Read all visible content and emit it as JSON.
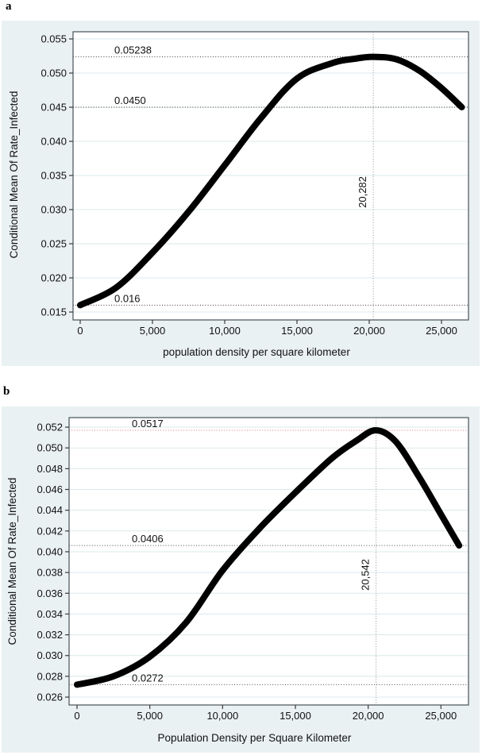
{
  "figure": {
    "panel_labels": {
      "a": "a",
      "b": "b"
    }
  },
  "chart_data": [
    {
      "type": "line",
      "panel_label": "a",
      "xlabel": "population density per square kilometer",
      "ylabel": "Conditional Mean Of Rate_Infected",
      "xlim": [
        -494,
        26868
      ],
      "ylim": [
        0.01384,
        0.05605
      ],
      "grid": true,
      "x_tick_values": [
        0,
        5000,
        10000,
        15000,
        20000,
        25000
      ],
      "x_tick_labels": [
        "0",
        "5,000",
        "10,000",
        "15,000",
        "20,000",
        "25,000"
      ],
      "y_tick_values": [
        0.055,
        0.05,
        0.045,
        0.04,
        0.035,
        0.03,
        0.025,
        0.02,
        0.015
      ],
      "y_tick_labels": [
        "0.055",
        "0.050",
        "0.045",
        "0.040",
        "0.035",
        "0.030",
        "0.025",
        "0.020",
        "0.015"
      ],
      "curve_points": [
        [
          0,
          0.016
        ],
        [
          2500,
          0.0186
        ],
        [
          5000,
          0.0237
        ],
        [
          7500,
          0.0297
        ],
        [
          10000,
          0.0365
        ],
        [
          12500,
          0.0434
        ],
        [
          15000,
          0.0492
        ],
        [
          17500,
          0.0515
        ],
        [
          19000,
          0.0521
        ],
        [
          20282,
          0.05238
        ],
        [
          21900,
          0.052
        ],
        [
          23500,
          0.0503
        ],
        [
          25000,
          0.0478
        ],
        [
          26400,
          0.045
        ]
      ],
      "line_color": "#000000",
      "line_width": 8,
      "reference_lines_h": [
        {
          "label": "0.05238",
          "value": 0.05238,
          "color": "#4d4d4d"
        },
        {
          "label": "0.0450",
          "value": 0.045,
          "color": "#4d4d4d"
        },
        {
          "label": "0.016",
          "value": 0.016,
          "color": "#4d4d4d"
        }
      ],
      "reference_lines_v": [
        {
          "label": "20,282",
          "value": 20282,
          "color": "#9b9b9b"
        }
      ],
      "panel_bg": "#eaf1f3",
      "plot_bg": "#ffffff",
      "grid_color": "#dce8ec"
    },
    {
      "type": "line",
      "panel_label": "b",
      "xlabel": "Population Density per Square Kilometer",
      "ylabel": "Conditional Mean Of Rate_Infected",
      "xlim": [
        -546,
        26893
      ],
      "ylim": [
        0.02524,
        0.05292
      ],
      "grid": true,
      "x_tick_values": [
        0,
        5000,
        10000,
        15000,
        20000,
        25000
      ],
      "x_tick_labels": [
        "0",
        "5,000",
        "10,000",
        "15,000",
        "20,000",
        "25,000"
      ],
      "y_tick_values": [
        0.052,
        0.05,
        0.048,
        0.046,
        0.044,
        0.042,
        0.04,
        0.038,
        0.036,
        0.034,
        0.032,
        0.03,
        0.028,
        0.026
      ],
      "y_tick_labels": [
        "0.052",
        "0.050",
        "0.048",
        "0.046",
        "0.044",
        "0.042",
        "0.040",
        "0.038",
        "0.036",
        "0.034",
        "0.032",
        "0.030",
        "0.028",
        "0.026"
      ],
      "curve_points": [
        [
          0,
          0.0272
        ],
        [
          2500,
          0.028
        ],
        [
          5000,
          0.0299
        ],
        [
          7500,
          0.0332
        ],
        [
          10000,
          0.0382
        ],
        [
          12500,
          0.0422
        ],
        [
          15000,
          0.0457
        ],
        [
          17500,
          0.049
        ],
        [
          19200,
          0.0507
        ],
        [
          20542,
          0.0517
        ],
        [
          21900,
          0.0506
        ],
        [
          23500,
          0.0472
        ],
        [
          25000,
          0.0436
        ],
        [
          26250,
          0.0406
        ]
      ],
      "line_color": "#000000",
      "line_width": 8,
      "reference_lines_h": [
        {
          "label": "0.0517",
          "value": 0.0517,
          "color": "#e88585"
        },
        {
          "label": "0.0406",
          "value": 0.0406,
          "color": "#4d4d4d"
        },
        {
          "label": "0.0272",
          "value": 0.0272,
          "color": "#4d4d4d"
        }
      ],
      "reference_lines_v": [
        {
          "label": "20,542",
          "value": 20542,
          "color": "#9b9b9b"
        }
      ],
      "panel_bg": "#eaf1f3",
      "plot_bg": "#ffffff",
      "grid_color": "#dce8ec"
    }
  ]
}
